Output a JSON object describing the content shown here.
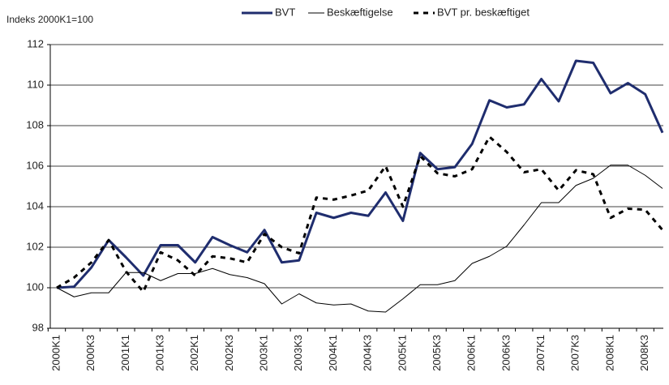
{
  "chart_data": {
    "type": "line",
    "y_label": "Indeks 2000K1=100",
    "categories": [
      "2000K1",
      null,
      "2000K3",
      null,
      "2001K1",
      null,
      "2001K3",
      null,
      "2002K1",
      null,
      "2002K3",
      null,
      "2003K1",
      null,
      "2003K3",
      null,
      "2004K1",
      null,
      "2004K3",
      null,
      "2005K1",
      null,
      "2005K3",
      null,
      "2006K1",
      null,
      "2006K3",
      null,
      "2007K1",
      null,
      "2007K3",
      null,
      "2008K1",
      null,
      "2008K3",
      null
    ],
    "series": [
      {
        "name": "BVT",
        "color": "#1f2d6e",
        "line_width": 3,
        "dashed": false,
        "values": [
          100.0,
          100.05,
          101.0,
          102.35,
          101.5,
          100.6,
          102.1,
          102.1,
          101.25,
          102.5,
          102.1,
          101.75,
          102.85,
          101.25,
          101.35,
          103.7,
          103.45,
          103.7,
          103.55,
          104.7,
          103.3,
          106.65,
          105.85,
          105.95,
          107.1,
          109.25,
          108.9,
          109.05,
          110.3,
          109.2,
          111.2,
          111.1,
          109.6,
          110.1,
          109.55,
          107.65
        ]
      },
      {
        "name": "Beskæftigelse",
        "color": "#000000",
        "line_width": 1,
        "dashed": false,
        "values": [
          100.0,
          99.55,
          99.75,
          99.75,
          100.75,
          100.75,
          100.35,
          100.7,
          100.7,
          100.95,
          100.65,
          100.5,
          100.2,
          99.2,
          99.7,
          99.25,
          99.15,
          99.2,
          98.85,
          98.8,
          99.45,
          100.15,
          100.15,
          100.35,
          101.2,
          101.55,
          102.05,
          103.1,
          104.2,
          104.2,
          105.05,
          105.4,
          106.05,
          106.05,
          105.55,
          104.9
        ]
      },
      {
        "name": "BVT pr. beskæftiget",
        "color": "#000000",
        "line_width": 3,
        "dashed": true,
        "values": [
          100.0,
          100.5,
          101.25,
          102.35,
          100.8,
          99.8,
          101.75,
          101.35,
          100.6,
          101.55,
          101.45,
          101.25,
          102.65,
          102.0,
          101.7,
          104.45,
          104.35,
          104.55,
          104.8,
          106.0,
          104.0,
          106.5,
          105.65,
          105.5,
          105.85,
          107.45,
          106.7,
          105.7,
          105.85,
          104.8,
          105.8,
          105.6,
          103.45,
          103.9,
          103.85,
          102.85
        ]
      }
    ],
    "ylim": [
      98,
      112
    ],
    "yticks": [
      98,
      100,
      102,
      104,
      106,
      108,
      110,
      112
    ],
    "grid": true,
    "legend": "top"
  }
}
